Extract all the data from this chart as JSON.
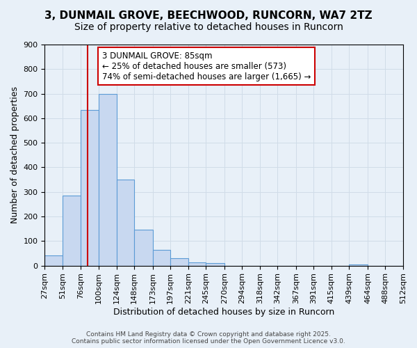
{
  "title_line1": "3, DUNMAIL GROVE, BEECHWOOD, RUNCORN, WA7 2TZ",
  "title_line2": "Size of property relative to detached houses in Runcorn",
  "xlabel": "Distribution of detached houses by size in Runcorn",
  "ylabel": "Number of detached properties",
  "bar_values": [
    42,
    285,
    635,
    700,
    350,
    145,
    65,
    30,
    12,
    10,
    0,
    0,
    0,
    0,
    0,
    0,
    0,
    5,
    0,
    0
  ],
  "bin_edges": [
    27,
    51,
    76,
    100,
    124,
    148,
    173,
    197,
    221,
    245,
    270,
    294,
    318,
    342,
    367,
    391,
    415,
    439,
    464,
    488,
    512
  ],
  "tick_labels": [
    "27sqm",
    "51sqm",
    "76sqm",
    "100sqm",
    "124sqm",
    "148sqm",
    "173sqm",
    "197sqm",
    "221sqm",
    "245sqm",
    "270sqm",
    "294sqm",
    "318sqm",
    "342sqm",
    "367sqm",
    "391sqm",
    "415sqm",
    "439sqm",
    "464sqm",
    "488sqm",
    "512sqm"
  ],
  "bar_fill_color": "#c8d8f0",
  "bar_edge_color": "#5b9bd5",
  "vline_x": 85,
  "vline_color": "#cc0000",
  "annotation_box_text": "3 DUNMAIL GROVE: 85sqm\n← 25% of detached houses are smaller (573)\n74% of semi-detached houses are larger (1,665) →",
  "annotation_box_edge_color": "#cc0000",
  "annotation_box_face_color": "#ffffff",
  "ylim": [
    0,
    900
  ],
  "yticks": [
    0,
    100,
    200,
    300,
    400,
    500,
    600,
    700,
    800,
    900
  ],
  "grid_color": "#d0dce8",
  "background_color": "#e8f0f8",
  "footer_text": "Contains HM Land Registry data © Crown copyright and database right 2025.\nContains public sector information licensed under the Open Government Licence v3.0.",
  "title_fontsize": 11,
  "subtitle_fontsize": 10,
  "axis_label_fontsize": 9,
  "tick_fontsize": 8,
  "annotation_fontsize": 8.5
}
